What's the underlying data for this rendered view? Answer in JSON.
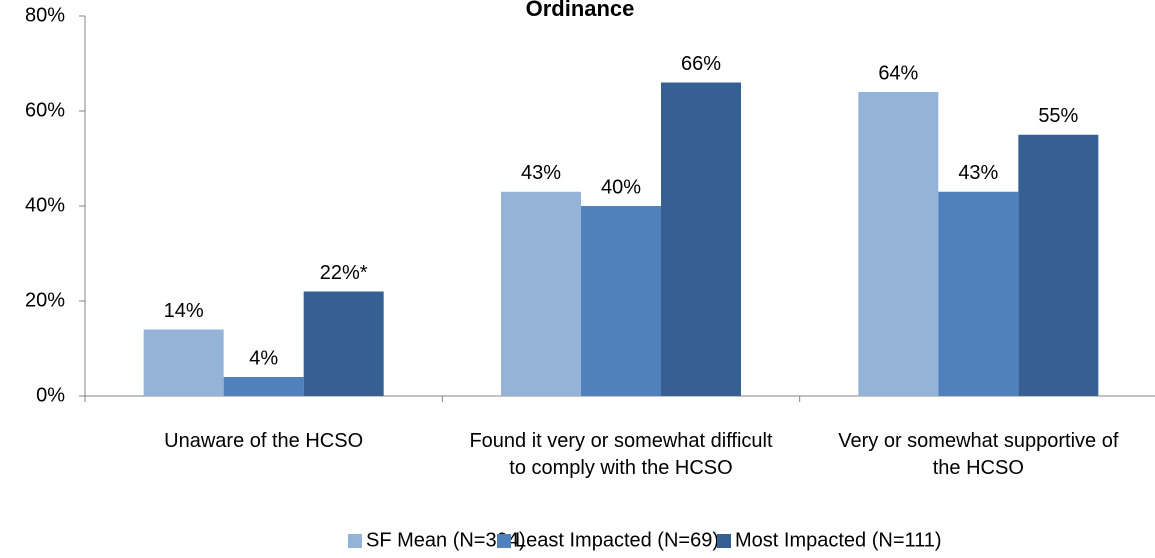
{
  "chart_data": {
    "type": "bar",
    "title": "Ordinance",
    "categories": [
      "Unaware of the HCSO",
      "Found it very or somewhat difficult to comply with the HCSO",
      "Very or somewhat supportive of the HCSO"
    ],
    "series": [
      {
        "name": "SF Mean (N=394)",
        "color": "#95b3d7",
        "values": [
          14,
          43,
          64
        ],
        "value_labels": [
          "14%",
          "43%",
          "64%"
        ]
      },
      {
        "name": "Least Impacted (N=69)",
        "color": "#4f81bd",
        "values": [
          4,
          40,
          43
        ],
        "value_labels": [
          "4%",
          "40%",
          "43%"
        ]
      },
      {
        "name": "Most Impacted (N=111)",
        "color": "#366092",
        "values": [
          22,
          66,
          55
        ],
        "value_labels": [
          "22%*",
          "66%",
          "55%"
        ]
      }
    ],
    "ylim": [
      0,
      80
    ],
    "yticks": [
      {
        "value": 0,
        "label": "0%"
      },
      {
        "value": 20,
        "label": "20%"
      },
      {
        "value": 40,
        "label": "40%"
      },
      {
        "value": 60,
        "label": "60%"
      },
      {
        "value": 80,
        "label": "80%"
      }
    ],
    "legend": "bottom"
  }
}
